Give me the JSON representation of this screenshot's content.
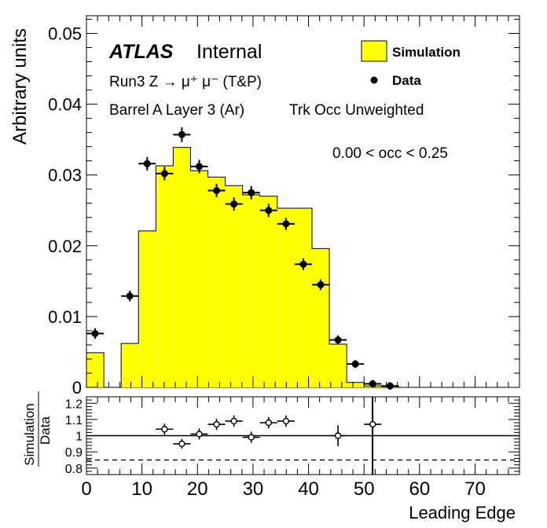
{
  "chart_data": [
    {
      "type": "histogram",
      "panel": "main",
      "xlabel": "Leading Edge",
      "ylabel": "Arbitrary units",
      "xlim": [
        0,
        78
      ],
      "ylim": [
        0,
        0.0525
      ],
      "y_ticks": [
        {
          "v": 0,
          "label": "0"
        },
        {
          "v": 0.01,
          "label": "0.01"
        },
        {
          "v": 0.02,
          "label": "0.02"
        },
        {
          "v": 0.03,
          "label": "0.03"
        },
        {
          "v": 0.04,
          "label": "0.04"
        },
        {
          "v": 0.05,
          "label": "0.05"
        }
      ],
      "annotations": {
        "atlas": "ATLAS",
        "internal": "Internal",
        "process": "Run3 Z → μ⁺ μ⁻ (T&P)",
        "region": "Barrel A Layer 3 (Ar)",
        "weighting": "Trk Occ Unweighted",
        "occupancy": "0.00 < occ < 0.25"
      },
      "legend": {
        "position": "top-right",
        "entries": [
          {
            "label": "Simulation",
            "kind": "fill",
            "color": "#ffff00"
          },
          {
            "label": "Data",
            "kind": "marker",
            "color": "#000000"
          }
        ]
      },
      "series": [
        {
          "name": "Simulation",
          "kind": "histogram",
          "fill": "#ffff00",
          "edges": [
            0,
            3.125,
            6.25,
            9.375,
            12.5,
            15.625,
            18.75,
            21.875,
            25,
            28.125,
            31.25,
            34.375,
            37.5,
            40.625,
            43.75,
            46.875,
            50,
            53.125,
            56.25
          ],
          "values": [
            0.0049,
            0.0,
            0.0062,
            0.0221,
            0.0313,
            0.0339,
            0.0306,
            0.0297,
            0.0285,
            0.0272,
            0.027,
            0.0253,
            0.0253,
            0.0196,
            0.0061,
            0.0007,
            0.0002,
            0.0001
          ]
        },
        {
          "name": "Data",
          "kind": "points",
          "x": [
            1.5625,
            7.8125,
            10.9375,
            14.0625,
            17.1875,
            20.3125,
            23.4375,
            26.5625,
            29.6875,
            32.8125,
            35.9375,
            39.0625,
            42.1875,
            45.3125,
            48.4375,
            51.5625,
            54.6875
          ],
          "values": [
            0.0076,
            0.0129,
            0.0316,
            0.0302,
            0.0357,
            0.0312,
            0.0278,
            0.0259,
            0.0275,
            0.025,
            0.0231,
            0.0174,
            0.0145,
            0.0067,
            0.0033,
            0.0005,
            0.0002
          ],
          "errors": [
            0.0003,
            0.0003,
            0.0005,
            0.0005,
            0.0006,
            0.0005,
            0.0005,
            0.0005,
            0.0005,
            0.0005,
            0.0004,
            0.0004,
            0.0003,
            0.0002,
            0.0001,
            0.0001,
            0.0001
          ]
        }
      ]
    },
    {
      "type": "scatter",
      "panel": "ratio",
      "xlabel": "Leading Edge",
      "ylabel_numerator": "Simulation",
      "ylabel_denominator": "Data",
      "xlim": [
        0,
        78
      ],
      "ylim": [
        0.76,
        1.24
      ],
      "x_ticks": [
        {
          "v": 0,
          "label": "0"
        },
        {
          "v": 10,
          "label": "10"
        },
        {
          "v": 20,
          "label": "20"
        },
        {
          "v": 30,
          "label": "30"
        },
        {
          "v": 40,
          "label": "40"
        },
        {
          "v": 50,
          "label": "50"
        },
        {
          "v": 60,
          "label": "60"
        },
        {
          "v": 70,
          "label": "70"
        }
      ],
      "y_ticks": [
        {
          "v": 0.8,
          "label": "0.8"
        },
        {
          "v": 0.9,
          "label": "0.9"
        },
        {
          "v": 1.0,
          "label": "1"
        },
        {
          "v": 1.1,
          "label": "1.1"
        },
        {
          "v": 1.2,
          "label": "1.2"
        }
      ],
      "reference_lines": [
        {
          "y": 1.0,
          "style": "solid"
        },
        {
          "y": 0.85,
          "style": "dashed"
        },
        {
          "x": 51.5,
          "style": "solid"
        }
      ],
      "points": {
        "x": [
          14.0625,
          17.1875,
          20.3125,
          23.4375,
          26.5625,
          29.6875,
          32.8125,
          35.9375,
          45.3125,
          51.5625
        ],
        "values": [
          1.04,
          0.95,
          1.01,
          1.07,
          1.09,
          0.99,
          1.08,
          1.09,
          1.0,
          1.07
        ],
        "errors": [
          0.02,
          0.015,
          0.02,
          0.02,
          0.02,
          0.02,
          0.02,
          0.02,
          0.05,
          0.3
        ]
      }
    }
  ]
}
